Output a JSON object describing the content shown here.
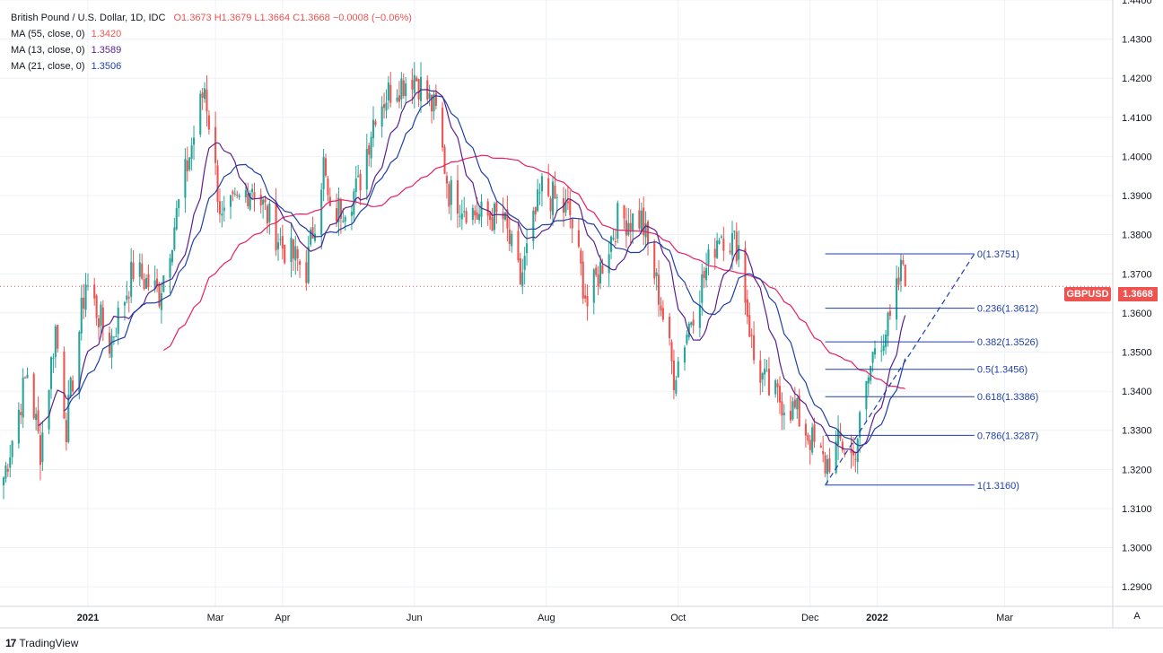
{
  "header": {
    "symbol": "British Pound / U.S. Dollar, 1D, IDC",
    "ohlc": "O1.3673  H1.3679  L1.3664  C1.3668  −0.0008 (−0.06%)",
    "ma55_label": "MA (55, close, 0)",
    "ma55_value": "1.3420",
    "ma13_label": "MA (13, close, 0)",
    "ma13_value": "1.3589",
    "ma21_label": "MA (21, close, 0)",
    "ma21_value": "1.3506"
  },
  "price_badge": "GBPUSD",
  "last_price": "1.3668",
  "auto_label": "A",
  "brand": "TradingView",
  "colors": {
    "up": "#26a69a",
    "down": "#ef5350",
    "ma55": "#e91e63",
    "ma13": "#5b1f8e",
    "ma21": "#1e3fa8",
    "fib": "#1e3fa8",
    "grid": "#eef1f6"
  },
  "chart_data": {
    "type": "candlestick",
    "title": "British Pound / U.S. Dollar, 1D, IDC",
    "ylim": [
      1.285,
      1.44
    ],
    "y_ticks": [
      "1.4400",
      "1.4300",
      "1.4200",
      "1.4100",
      "1.4000",
      "1.3900",
      "1.3800",
      "1.3700",
      "1.3600",
      "1.3500",
      "1.3400",
      "1.3300",
      "1.3200",
      "1.3100",
      "1.3000",
      "1.2900"
    ],
    "x_ticks": [
      "2021",
      "Mar",
      "Apr",
      "Jun",
      "Aug",
      "Oct",
      "Dec",
      "2022",
      "Mar"
    ],
    "anchors": [
      [
        "2020-11-23",
        1.318
      ],
      [
        "2020-12-04",
        1.345
      ],
      [
        "2020-12-10",
        1.325
      ],
      [
        "2020-12-17",
        1.356
      ],
      [
        "2020-12-22",
        1.331
      ],
      [
        "2020-12-31",
        1.368
      ],
      [
        "2021-01-11",
        1.352
      ],
      [
        "2021-01-22",
        1.371
      ],
      [
        "2021-02-03",
        1.365
      ],
      [
        "2021-02-24",
        1.418
      ],
      [
        "2021-03-04",
        1.383
      ],
      [
        "2021-03-18",
        1.393
      ],
      [
        "2021-04-01",
        1.377
      ],
      [
        "2021-04-12",
        1.371
      ],
      [
        "2021-04-20",
        1.398
      ],
      [
        "2021-04-23",
        1.384
      ],
      [
        "2021-05-06",
        1.392
      ],
      [
        "2021-05-14",
        1.412
      ],
      [
        "2021-05-21",
        1.417
      ],
      [
        "2021-06-01",
        1.421
      ],
      [
        "2021-06-11",
        1.411
      ],
      [
        "2021-06-17",
        1.391
      ],
      [
        "2021-06-30",
        1.385
      ],
      [
        "2021-07-12",
        1.384
      ],
      [
        "2021-07-20",
        1.368
      ],
      [
        "2021-07-30",
        1.392
      ],
      [
        "2021-08-12",
        1.385
      ],
      [
        "2021-08-20",
        1.362
      ],
      [
        "2021-09-03",
        1.384
      ],
      [
        "2021-09-14",
        1.384
      ],
      [
        "2021-09-22",
        1.365
      ],
      [
        "2021-09-29",
        1.344
      ],
      [
        "2021-10-08",
        1.361
      ],
      [
        "2021-10-20",
        1.381
      ],
      [
        "2021-10-29",
        1.377
      ],
      [
        "2021-11-05",
        1.348
      ],
      [
        "2021-11-12",
        1.34
      ],
      [
        "2021-11-24",
        1.335
      ],
      [
        "2021-12-08",
        1.321
      ],
      [
        "2021-12-15",
        1.327
      ],
      [
        "2021-12-21",
        1.323
      ],
      [
        "2021-12-31",
        1.352
      ],
      [
        "2022-01-07",
        1.357
      ],
      [
        "2022-01-13",
        1.373
      ],
      [
        "2022-01-14",
        1.3668
      ]
    ],
    "ma": [
      {
        "name": "MA (55, close, 0)",
        "period": 55,
        "value": 1.342
      },
      {
        "name": "MA (13, close, 0)",
        "period": 13,
        "value": 1.3589
      },
      {
        "name": "MA (21, close, 0)",
        "period": 21,
        "value": 1.3506
      }
    ],
    "fibonacci": {
      "levels": [
        {
          "label": "0(1.3751)",
          "price": 1.3751
        },
        {
          "label": "0.236(1.3612)",
          "price": 1.3612
        },
        {
          "label": "0.382(1.3526)",
          "price": 1.3526
        },
        {
          "label": "0.5(1.3456)",
          "price": 1.3456
        },
        {
          "label": "0.618(1.3386)",
          "price": 1.3386
        },
        {
          "label": "0.786(1.3287)",
          "price": 1.3287
        },
        {
          "label": "1(1.3160)",
          "price": 1.316
        }
      ],
      "start_date": "2021-12-08",
      "end_date": "2022-02-15",
      "trendline": {
        "from_date": "2021-12-08",
        "from_price": 1.316,
        "to_date": "2022-02-15",
        "to_price": 1.3751
      }
    }
  }
}
